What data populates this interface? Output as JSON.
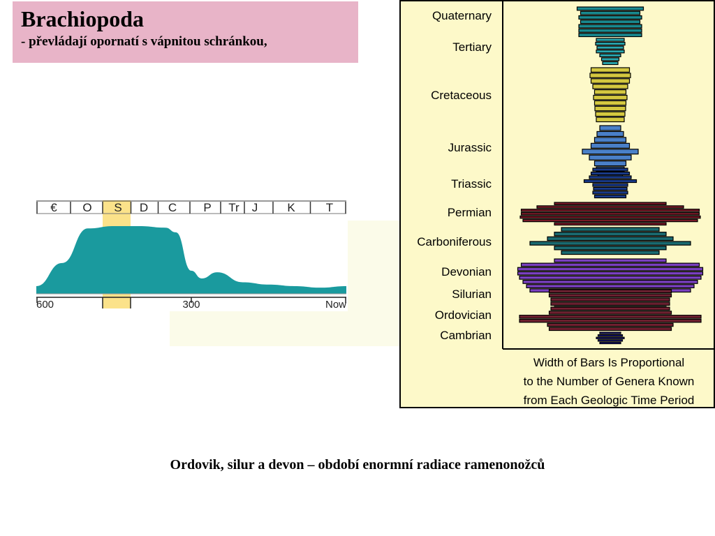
{
  "title": {
    "heading": "Brachiopoda",
    "subtitle": "- převládají opornatí s vápnitou schránkou,"
  },
  "caption": "Ordovik, silur a devon – období enormní radiace ramenonožců",
  "timeline": {
    "periods": [
      "€",
      "O",
      "S",
      "D",
      "C",
      "P",
      "Tr",
      "J",
      "K",
      "T"
    ],
    "highlighted_period": "S",
    "axis_labels": [
      "600",
      "300",
      "Now"
    ],
    "colors": {
      "fill": "#1a9a9e",
      "highlight": "#fbe28a",
      "background": "#ffffff"
    }
  },
  "spindle": {
    "periods": [
      "Quaternary",
      "Tertiary",
      "Cretaceous",
      "Jurassic",
      "Triassic",
      "Permian",
      "Carboniferous",
      "Devonian",
      "Silurian",
      "Ordovician",
      "Cambrian"
    ],
    "legend": [
      "Width of Bars Is Proportional",
      "to the Number of Genera Known",
      "from Each Geologic Time Period"
    ],
    "background": "#fdf9c9"
  },
  "chart_data": [
    {
      "type": "area",
      "title": "",
      "xlabel": "",
      "ylabel": "",
      "x": [
        600,
        550,
        500,
        450,
        400,
        350,
        330,
        300,
        280,
        250,
        200,
        150,
        100,
        50,
        0
      ],
      "y": [
        10,
        40,
        85,
        88,
        88,
        86,
        80,
        30,
        20,
        28,
        15,
        12,
        10,
        8,
        10
      ],
      "note_values": "relative diversity, estimated from shape"
    },
    {
      "type": "bar",
      "title": "",
      "bars": [
        {
          "period": "Quaternary",
          "color": "#1a8a90",
          "widths": [
            95,
            85,
            90,
            85,
            90,
            90,
            90
          ]
        },
        {
          "period": "Tertiary",
          "color": "#2aa8b0",
          "widths": [
            40,
            42,
            38,
            40,
            30,
            25,
            22
          ]
        },
        {
          "period": "Cretaceous",
          "color": "#d4c840",
          "widths": [
            55,
            58,
            55,
            50,
            45,
            48,
            45,
            44,
            42,
            40
          ]
        },
        {
          "period": "Jurassic",
          "color": "#4a80c8",
          "widths": [
            30,
            38,
            45,
            55,
            80,
            60,
            45,
            40,
            35
          ]
        },
        {
          "period": "Triassic",
          "color": "#1a3c8c",
          "widths": [
            50,
            55,
            60,
            75,
            50,
            48,
            50,
            45
          ]
        },
        {
          "period": "Permian",
          "color": "#7a1a28",
          "widths": [
            160,
            210,
            255,
            255,
            258,
            250,
            160
          ]
        },
        {
          "period": "Carboniferous",
          "color": "#1a6a70",
          "widths": [
            140,
            160,
            180,
            230,
            160,
            140
          ]
        },
        {
          "period": "Devonian",
          "color": "#7a40c0",
          "widths": [
            160,
            255,
            265,
            265,
            260,
            250,
            240,
            230
          ]
        },
        {
          "period": "Silurian",
          "color": "#6a2030",
          "widths": [
            175,
            175,
            170,
            170,
            160
          ]
        },
        {
          "period": "Ordovician",
          "color": "#702030",
          "widths": [
            170,
            175,
            260,
            260,
            180,
            175
          ]
        },
        {
          "period": "Cambrian",
          "color": "#1a1aa0",
          "widths": [
            30,
            35,
            40,
            35,
            30
          ]
        }
      ]
    }
  ]
}
